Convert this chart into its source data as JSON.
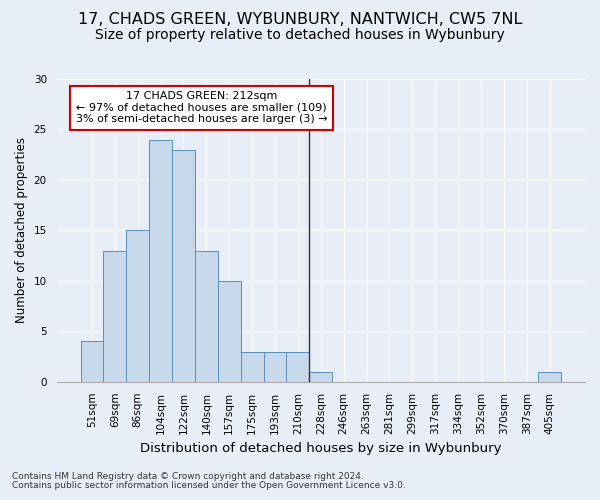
{
  "title_line1": "17, CHADS GREEN, WYBUNBURY, NANTWICH, CW5 7NL",
  "title_line2": "Size of property relative to detached houses in Wybunbury",
  "xlabel": "Distribution of detached houses by size in Wybunbury",
  "ylabel": "Number of detached properties",
  "categories": [
    "51sqm",
    "69sqm",
    "86sqm",
    "104sqm",
    "122sqm",
    "140sqm",
    "157sqm",
    "175sqm",
    "193sqm",
    "210sqm",
    "228sqm",
    "246sqm",
    "263sqm",
    "281sqm",
    "299sqm",
    "317sqm",
    "334sqm",
    "352sqm",
    "370sqm",
    "387sqm",
    "405sqm"
  ],
  "values": [
    4,
    13,
    15,
    24,
    23,
    13,
    10,
    3,
    3,
    3,
    1,
    0,
    0,
    0,
    0,
    0,
    0,
    0,
    0,
    0,
    1
  ],
  "bar_color": "#c8d8eb",
  "bar_edge_color": "#5b8db8",
  "vline_x_idx": 9.5,
  "vline_color": "#333333",
  "annotation_text": "17 CHADS GREEN: 212sqm\n← 97% of detached houses are smaller (109)\n3% of semi-detached houses are larger (3) →",
  "annotation_box_color": "#ffffff",
  "annotation_box_edge_color": "#cc0000",
  "ylim": [
    0,
    30
  ],
  "yticks": [
    0,
    5,
    10,
    15,
    20,
    25,
    30
  ],
  "background_color": "#e8eef8",
  "plot_background_color": "#e8eef8",
  "footnote_line1": "Contains HM Land Registry data © Crown copyright and database right 2024.",
  "footnote_line2": "Contains public sector information licensed under the Open Government Licence v3.0.",
  "title_fontsize": 11.5,
  "subtitle_fontsize": 10,
  "tick_fontsize": 7.5,
  "xlabel_fontsize": 9.5,
  "ylabel_fontsize": 8.5,
  "annotation_fontsize": 8,
  "footnote_fontsize": 6.5
}
